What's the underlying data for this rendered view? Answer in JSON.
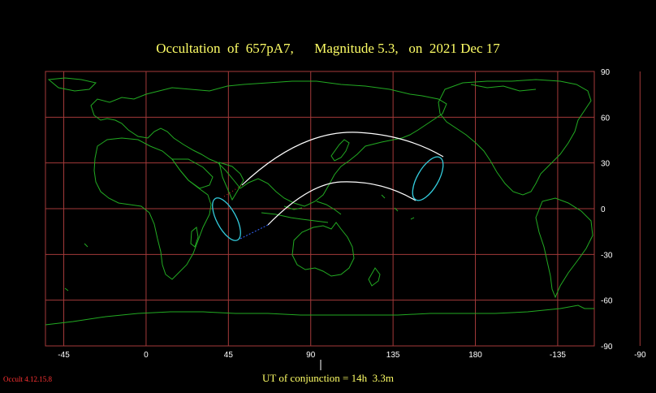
{
  "title": "Occultation  of  657pA7,      Magnitude 5.3,   on  2021 Dec 17",
  "ut_label": "UT of conjunction = 14h  3.3m",
  "version": "Occult 4.12.15.8",
  "axes": {
    "x_ticks": [
      "-45",
      "0",
      "45",
      "90",
      "135",
      "180",
      "-135",
      "-90"
    ],
    "y_ticks": [
      "90",
      "60",
      "30",
      "0",
      "-30",
      "-60",
      "-90"
    ]
  },
  "colors": {
    "grid": "#a33a3a",
    "coast": "#22aa22",
    "track": "#ffffff",
    "limb": "#33ccdd",
    "title": "#ffff66",
    "dotted": "#cc2222"
  },
  "map_extent": {
    "lon_min": -55,
    "lon_max": 245,
    "lat_min": -90,
    "lat_max": 90
  }
}
